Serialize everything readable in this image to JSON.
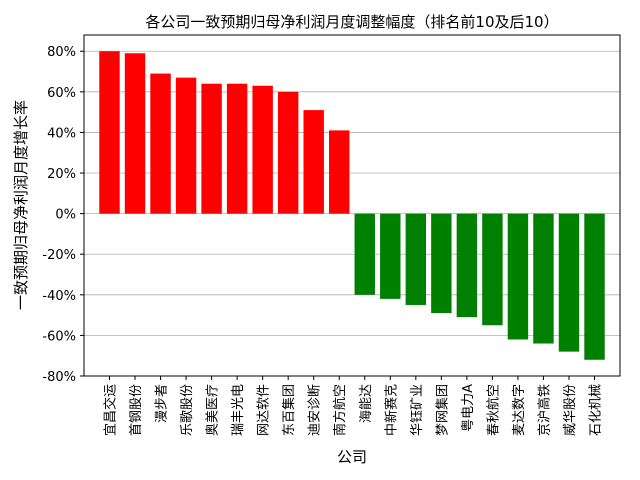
{
  "chart_data": {
    "type": "bar",
    "title": "各公司一致预期归母净利润月度调整幅度（排名前10及后10）",
    "xlabel": "公司",
    "ylabel": "一致预期归母净利润月度增长率",
    "ylim": [
      -0.8,
      0.88
    ],
    "yticks": [
      -0.8,
      -0.6,
      -0.4,
      -0.2,
      0.0,
      0.2,
      0.4,
      0.6,
      0.8
    ],
    "ytick_labels": [
      "-80%",
      "-60%",
      "-40%",
      "-20%",
      "0%",
      "20%",
      "40%",
      "60%",
      "80%"
    ],
    "grid": "horizontal",
    "colors": {
      "positive": "#ff0000",
      "negative": "#008000"
    },
    "categories": [
      "宜昌交运",
      "首钢股份",
      "漫步者",
      "乐歌股份",
      "奥美医疗",
      "瑞丰光电",
      "网达软件",
      "东百集团",
      "迪安诊断",
      "南方航空",
      "海能达",
      "中新赛克",
      "华钰矿业",
      "梦网集团",
      "粤电力A",
      "春秋航空",
      "麦达数字",
      "京沪高铁",
      "威华股份",
      "石化机械"
    ],
    "values": [
      0.8,
      0.79,
      0.69,
      0.67,
      0.64,
      0.64,
      0.63,
      0.6,
      0.51,
      0.41,
      -0.4,
      -0.42,
      -0.45,
      -0.49,
      -0.51,
      -0.55,
      -0.62,
      -0.64,
      -0.68,
      -0.72
    ]
  }
}
